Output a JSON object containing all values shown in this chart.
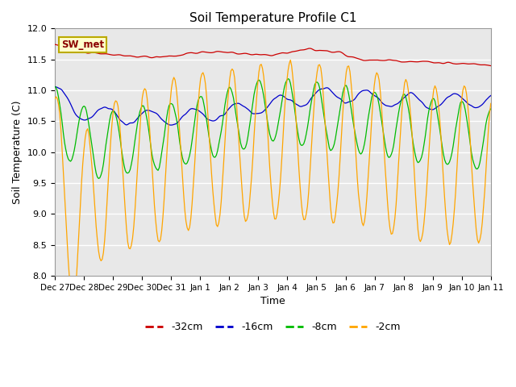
{
  "title": "Soil Temperature Profile C1",
  "xlabel": "Time",
  "ylabel": "Soil Temperature (C)",
  "ylim": [
    8.0,
    12.0
  ],
  "yticks": [
    8.0,
    8.5,
    9.0,
    9.5,
    10.0,
    10.5,
    11.0,
    11.5,
    12.0
  ],
  "colors": {
    "-32cm": "#cc0000",
    "-16cm": "#0000cc",
    "-8cm": "#00bb00",
    "-2cm": "#ffa500"
  },
  "legend_box_color": "#ffffcc",
  "legend_box_edge": "#bbaa00",
  "background_color": "#ffffff",
  "plot_bg_color": "#e8e8e8",
  "grid_color": "#ffffff",
  "xtick_labels": [
    "Dec 27",
    "Dec 28",
    "Dec 29",
    "Dec 30",
    "Dec 31",
    "Jan 1",
    "Jan 2",
    "Jan 3",
    "Jan 4",
    "Jan 5",
    "Jan 6",
    "Jan 7",
    "Jan 8",
    "Jan 9",
    "Jan 10",
    "Jan 11"
  ],
  "n_points": 360
}
